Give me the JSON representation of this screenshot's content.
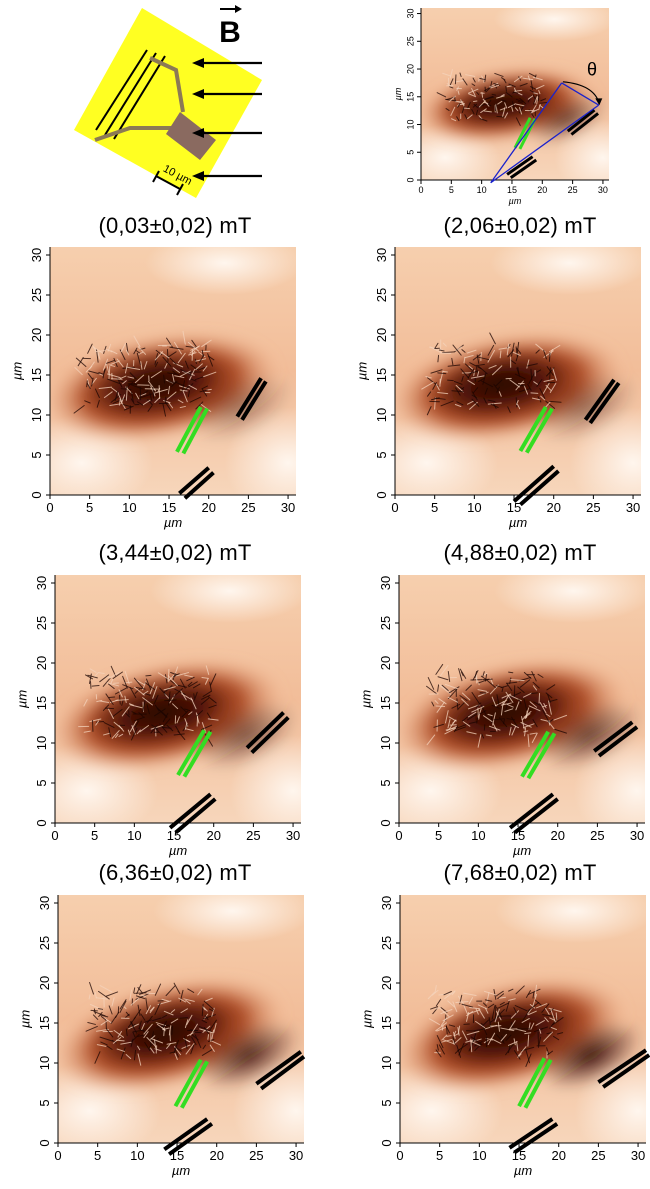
{
  "schematic": {
    "field_label": "B",
    "scale_label": "10 µm",
    "stripe_color": "#000000",
    "substrate_color": "#ffff22",
    "contact_color": "#8a6a60",
    "lead_color": "#8c7a55"
  },
  "inset": {
    "angle_label": "θ",
    "xlabel": "µm",
    "ylabel": "µm",
    "ticks": [
      "0",
      "5",
      "10",
      "15",
      "20",
      "25",
      "30"
    ],
    "line_color": "#1a22cc"
  },
  "panel_axis": {
    "xlabel": "µm",
    "ylabel": "µm",
    "ticks": [
      "0",
      "5",
      "10",
      "15",
      "20",
      "25",
      "30"
    ]
  },
  "captions": [
    {
      "value": "(0,03±0,02)",
      "unit": "mT"
    },
    {
      "value": "(2,06±0,02)",
      "unit": "mT"
    },
    {
      "value": "(3,44±0,02)",
      "unit": "mT"
    },
    {
      "value": "(4,88±0,02)",
      "unit": "mT"
    },
    {
      "value": "(6,36±0,02)",
      "unit": "mT"
    },
    {
      "value": "(7,68±0,02)",
      "unit": "mT"
    }
  ],
  "colors": {
    "map_dark": "#3a0c05",
    "map_mid": "#9e3b18",
    "map_light": "#fdf1e6",
    "green_marker": "#33dd22",
    "black_marker": "#000000"
  }
}
